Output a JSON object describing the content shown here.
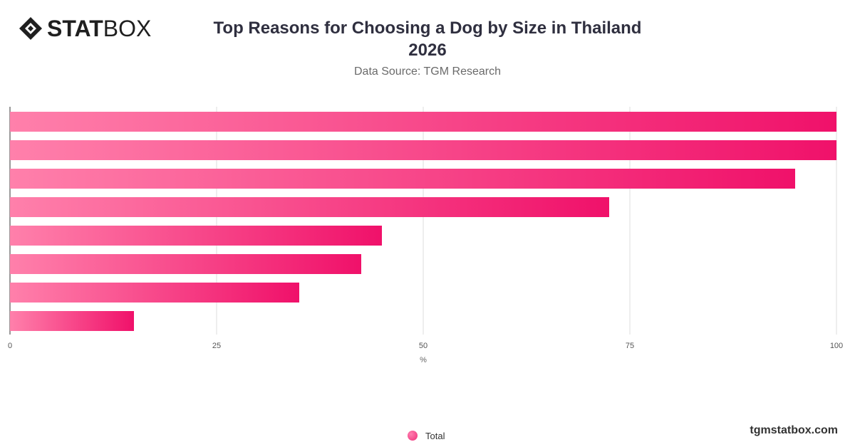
{
  "brand": {
    "name_bold": "STAT",
    "name_light": "BOX",
    "icon": "statbox-diamond-icon"
  },
  "title_line1": "Top Reasons for Choosing a Dog by Size in Thailand",
  "title_line2": "2026",
  "subtitle": "Data Source: TGM Research",
  "footer": "tgmstatbox.com",
  "legend": {
    "label": "Total"
  },
  "colors": {
    "bar_start": "#ff80ab",
    "bar_end": "#f0116a",
    "grid": "#dddddd",
    "axis": "#333333"
  },
  "chart_data": {
    "type": "bar",
    "orientation": "horizontal",
    "categories": [
      "",
      "",
      "",
      "",
      "",
      "",
      "",
      ""
    ],
    "series": [
      {
        "name": "Total",
        "values": [
          100,
          100,
          95,
          72.5,
          45,
          42.5,
          35,
          15
        ]
      }
    ],
    "xlabel": "%",
    "xlim": [
      0,
      100
    ],
    "xticks": [
      0,
      25,
      50,
      75,
      100
    ],
    "grid": true,
    "legend_position": "bottom-center"
  }
}
